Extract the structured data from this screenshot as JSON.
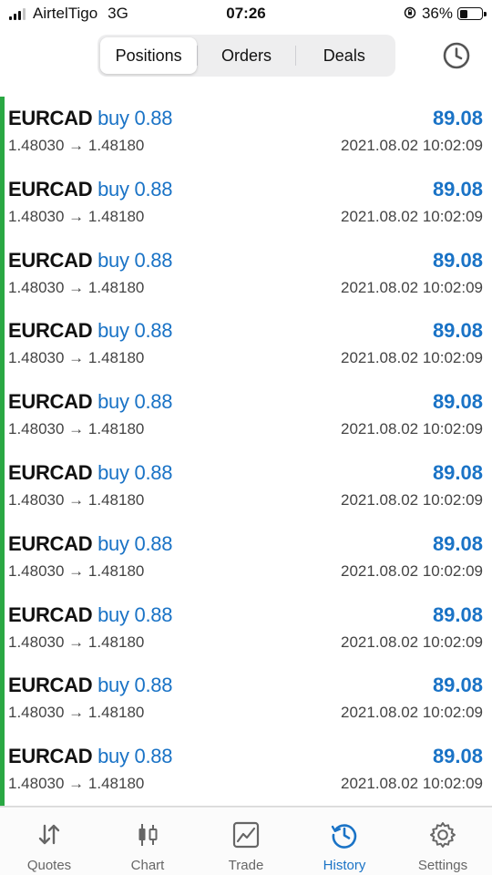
{
  "status_bar": {
    "carrier": "AirtelTigo",
    "network": "3G",
    "time": "07:26",
    "battery_percent": "36%",
    "battery_level": 0.36
  },
  "header": {
    "tabs": [
      {
        "label": "Positions",
        "active": true
      },
      {
        "label": "Orders",
        "active": false
      },
      {
        "label": "Deals",
        "active": false
      }
    ],
    "history_icon": "clock-icon"
  },
  "deals": [
    {
      "symbol": "EURCAD",
      "side": "buy",
      "lots": "0.88",
      "prices": "1.48030 → 1.48180",
      "profit": "89.08",
      "time": "2021.08.02 10:02:09"
    },
    {
      "symbol": "EURCAD",
      "side": "buy",
      "lots": "0.88",
      "prices": "1.48030 → 1.48180",
      "profit": "89.08",
      "time": "2021.08.02 10:02:09"
    },
    {
      "symbol": "EURCAD",
      "side": "buy",
      "lots": "0.88",
      "prices": "1.48030 → 1.48180",
      "profit": "89.08",
      "time": "2021.08.02 10:02:09"
    },
    {
      "symbol": "EURCAD",
      "side": "buy",
      "lots": "0.88",
      "prices": "1.48030 → 1.48180",
      "profit": "89.08",
      "time": "2021.08.02 10:02:09"
    },
    {
      "symbol": "EURCAD",
      "side": "buy",
      "lots": "0.88",
      "prices": "1.48030 → 1.48180",
      "profit": "89.08",
      "time": "2021.08.02 10:02:09"
    },
    {
      "symbol": "EURCAD",
      "side": "buy",
      "lots": "0.88",
      "prices": "1.48030 → 1.48180",
      "profit": "89.08",
      "time": "2021.08.02 10:02:09"
    },
    {
      "symbol": "EURCAD",
      "side": "buy",
      "lots": "0.88",
      "prices": "1.48030 → 1.48180",
      "profit": "89.08",
      "time": "2021.08.02 10:02:09"
    },
    {
      "symbol": "EURCAD",
      "side": "buy",
      "lots": "0.88",
      "prices": "1.48030 → 1.48180",
      "profit": "89.08",
      "time": "2021.08.02 10:02:09"
    },
    {
      "symbol": "EURCAD",
      "side": "buy",
      "lots": "0.88",
      "prices": "1.48030 → 1.48180",
      "profit": "89.08",
      "time": "2021.08.02 10:02:09"
    },
    {
      "symbol": "EURCAD",
      "side": "buy",
      "lots": "0.88",
      "prices": "1.48030 → 1.48180",
      "profit": "89.08",
      "time": "2021.08.02 10:02:09"
    }
  ],
  "tabbar": {
    "items": [
      {
        "label": "Quotes",
        "icon": "quotes-arrows-icon",
        "active": false
      },
      {
        "label": "Chart",
        "icon": "candlestick-chart-icon",
        "active": false
      },
      {
        "label": "Trade",
        "icon": "trade-chart-icon",
        "active": false
      },
      {
        "label": "History",
        "icon": "history-clock-icon",
        "active": true
      },
      {
        "label": "Settings",
        "icon": "gear-icon",
        "active": false
      }
    ]
  },
  "colors": {
    "accent": "#1a73c6",
    "buy_indicator": "#2aa843",
    "text": "#111111",
    "secondary_text": "#444444"
  }
}
